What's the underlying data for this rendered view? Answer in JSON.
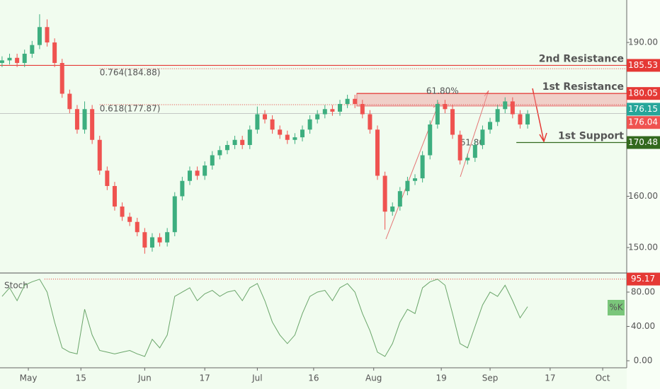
{
  "chart_data": {
    "type": "candlestick",
    "x": [
      -7,
      -5,
      -3,
      -1,
      1,
      3,
      5,
      7,
      9,
      11,
      13,
      15,
      17,
      19,
      21,
      23,
      25,
      27,
      29,
      31,
      33,
      35,
      37,
      39,
      41,
      43,
      45,
      47,
      49,
      51,
      53,
      55,
      57,
      59,
      61,
      63,
      65,
      67,
      69,
      71,
      73,
      75,
      77,
      79,
      81,
      83,
      85,
      87,
      89,
      91,
      93,
      95,
      97,
      99,
      101,
      103,
      105,
      107,
      109,
      111,
      113,
      115,
      117,
      119,
      121,
      123,
      125,
      127,
      129,
      131,
      133
    ],
    "open": [
      186,
      186.5,
      187,
      186,
      187.8,
      189.5,
      193,
      190,
      186,
      180,
      177,
      173,
      177,
      171,
      165,
      162,
      158,
      156,
      155,
      153,
      150,
      152,
      151,
      153,
      160,
      163,
      165,
      164,
      166,
      168,
      169,
      170,
      171,
      170,
      173,
      176,
      175,
      173,
      172,
      171,
      171.5,
      173,
      175,
      176,
      177,
      176.5,
      178,
      179,
      178,
      176,
      173,
      164,
      157,
      158,
      161,
      163,
      163.5,
      168,
      174,
      178,
      177,
      172,
      167,
      167.5,
      170,
      173,
      174.5,
      177,
      178.5,
      176,
      174
    ],
    "high": [
      187.3,
      187.8,
      187.8,
      188.6,
      190.3,
      195.5,
      194.5,
      190.8,
      186.8,
      180.8,
      177.8,
      178.5,
      177.8,
      171.8,
      165.8,
      162.8,
      158.8,
      156.8,
      155.8,
      153.8,
      152.8,
      152.8,
      153.8,
      160.8,
      163.8,
      165.8,
      165.8,
      166.8,
      168.8,
      169.8,
      170.8,
      171.8,
      171.8,
      173.8,
      177.5,
      176.8,
      175.8,
      173.8,
      172.8,
      172.3,
      173.8,
      175.8,
      176.8,
      177.8,
      177.8,
      178.8,
      179.8,
      179.8,
      178.8,
      176.8,
      173.8,
      164.8,
      158.8,
      161.8,
      163.8,
      164.3,
      168.8,
      174.8,
      178.8,
      178.8,
      177.8,
      172.8,
      168.3,
      170.8,
      173.8,
      175.3,
      177.8,
      179.3,
      179.3,
      176.8,
      176.8
    ],
    "low": [
      185.2,
      185.7,
      185.2,
      185.2,
      187,
      188.7,
      189.2,
      185.2,
      179.2,
      176.2,
      172.2,
      172.2,
      170.2,
      164.2,
      161.2,
      157.2,
      155.2,
      154.2,
      152.2,
      148.8,
      149.2,
      150.2,
      150.2,
      152.2,
      159.2,
      162.2,
      163.2,
      163.2,
      165.2,
      167.2,
      168.2,
      169.2,
      169.2,
      169.2,
      172.2,
      174.2,
      172.2,
      171.2,
      170.2,
      170.2,
      170.7,
      172.2,
      174.2,
      175.2,
      175.7,
      175.7,
      177.2,
      177.2,
      175.2,
      172.2,
      163.2,
      153.5,
      156.2,
      157.2,
      160.2,
      162.2,
      162.7,
      167.2,
      173.2,
      176.2,
      171.2,
      166.2,
      166.2,
      166.7,
      169.2,
      172.2,
      173.7,
      176.2,
      175.2,
      173.2,
      173.2
    ],
    "close": [
      186.5,
      187,
      186,
      187.8,
      189.5,
      193,
      190,
      186,
      180,
      177,
      173,
      177,
      171,
      165,
      162,
      158,
      156,
      155,
      153,
      150,
      152,
      151,
      153,
      160,
      163,
      165,
      164,
      166,
      168,
      169,
      170,
      171,
      170,
      173,
      176,
      175,
      173,
      172,
      171,
      171.5,
      173,
      175,
      176,
      177,
      176.5,
      178,
      179,
      178,
      176,
      173,
      164,
      157,
      158,
      161,
      163,
      163.5,
      168,
      174,
      178,
      177,
      172,
      167,
      167.5,
      170,
      173,
      174.5,
      177,
      178.5,
      176,
      174,
      176.04
    ],
    "up_color": "#3dae7f",
    "down_color": "#ef5350",
    "xlim": [
      -7.55,
      159.4
    ],
    "xticks": [
      {
        "value": 0,
        "label": "May"
      },
      {
        "value": 14,
        "label": "15"
      },
      {
        "value": 31,
        "label": "Jun"
      },
      {
        "value": 47,
        "label": "17"
      },
      {
        "value": 61,
        "label": "Jul"
      },
      {
        "value": 76,
        "label": "16"
      },
      {
        "value": 92,
        "label": "Aug"
      },
      {
        "value": 110,
        "label": "19"
      },
      {
        "value": 123,
        "label": "Sep"
      },
      {
        "value": 139,
        "label": "17"
      },
      {
        "value": 153,
        "label": "Oct"
      }
    ],
    "ylim": [
      145.17,
      198.28
    ],
    "yticks": [
      {
        "value": 190,
        "label": "190.00"
      },
      {
        "value": 160,
        "label": "160.00"
      },
      {
        "value": 150,
        "label": "150.00"
      }
    ],
    "levels": [
      {
        "label": "2nd Resistance",
        "value": 185.53,
        "color": "#e53935",
        "from": -7.55
      },
      {
        "label": "1st Resistance",
        "value": 180.05,
        "color": "#e53935",
        "from": 87.5
      },
      {
        "label": "1st Support",
        "value": 170.48,
        "color": "#33691e",
        "from": 130
      }
    ],
    "zone": {
      "top": 180.05,
      "bottom": 177.6,
      "from": 87.5,
      "color": "#ef9a9a"
    },
    "fib_lines": [
      {
        "label": "0.764(184.88)",
        "value": 184.88,
        "from": 19
      },
      {
        "label": "0.618(177.87)",
        "value": 177.87,
        "from": 19
      }
    ],
    "annotations": [
      {
        "text": "61.80%",
        "x": 106,
        "y": 180.5
      },
      {
        "text": "61.80",
        "x": 115,
        "y": 170.4
      }
    ],
    "price_tags": [
      {
        "value": 176.15,
        "color": "#26a69a"
      },
      {
        "value": 176.04,
        "color": "#ef5350"
      }
    ],
    "stoch": {
      "title": "Stoch",
      "name": "%K",
      "color": "#6aa56a",
      "values": [
        75,
        85,
        70,
        88,
        92,
        95,
        80,
        45,
        15,
        10,
        8,
        60,
        30,
        12,
        10,
        8,
        10,
        12,
        8,
        5,
        25,
        15,
        30,
        75,
        80,
        85,
        70,
        78,
        82,
        75,
        80,
        82,
        70,
        85,
        90,
        70,
        45,
        30,
        20,
        30,
        55,
        75,
        80,
        82,
        70,
        85,
        90,
        80,
        55,
        35,
        10,
        5,
        20,
        45,
        60,
        55,
        85,
        92,
        95,
        88,
        55,
        20,
        15,
        40,
        65,
        80,
        75,
        88,
        70,
        50,
        63
      ],
      "ylim": [
        -8.2,
        100.6
      ],
      "yticks": [
        {
          "value": 80,
          "label": "80.00"
        },
        {
          "value": 40,
          "label": "40.00"
        },
        {
          "value": 0,
          "label": "0.00"
        }
      ],
      "level": 95.17
    }
  }
}
